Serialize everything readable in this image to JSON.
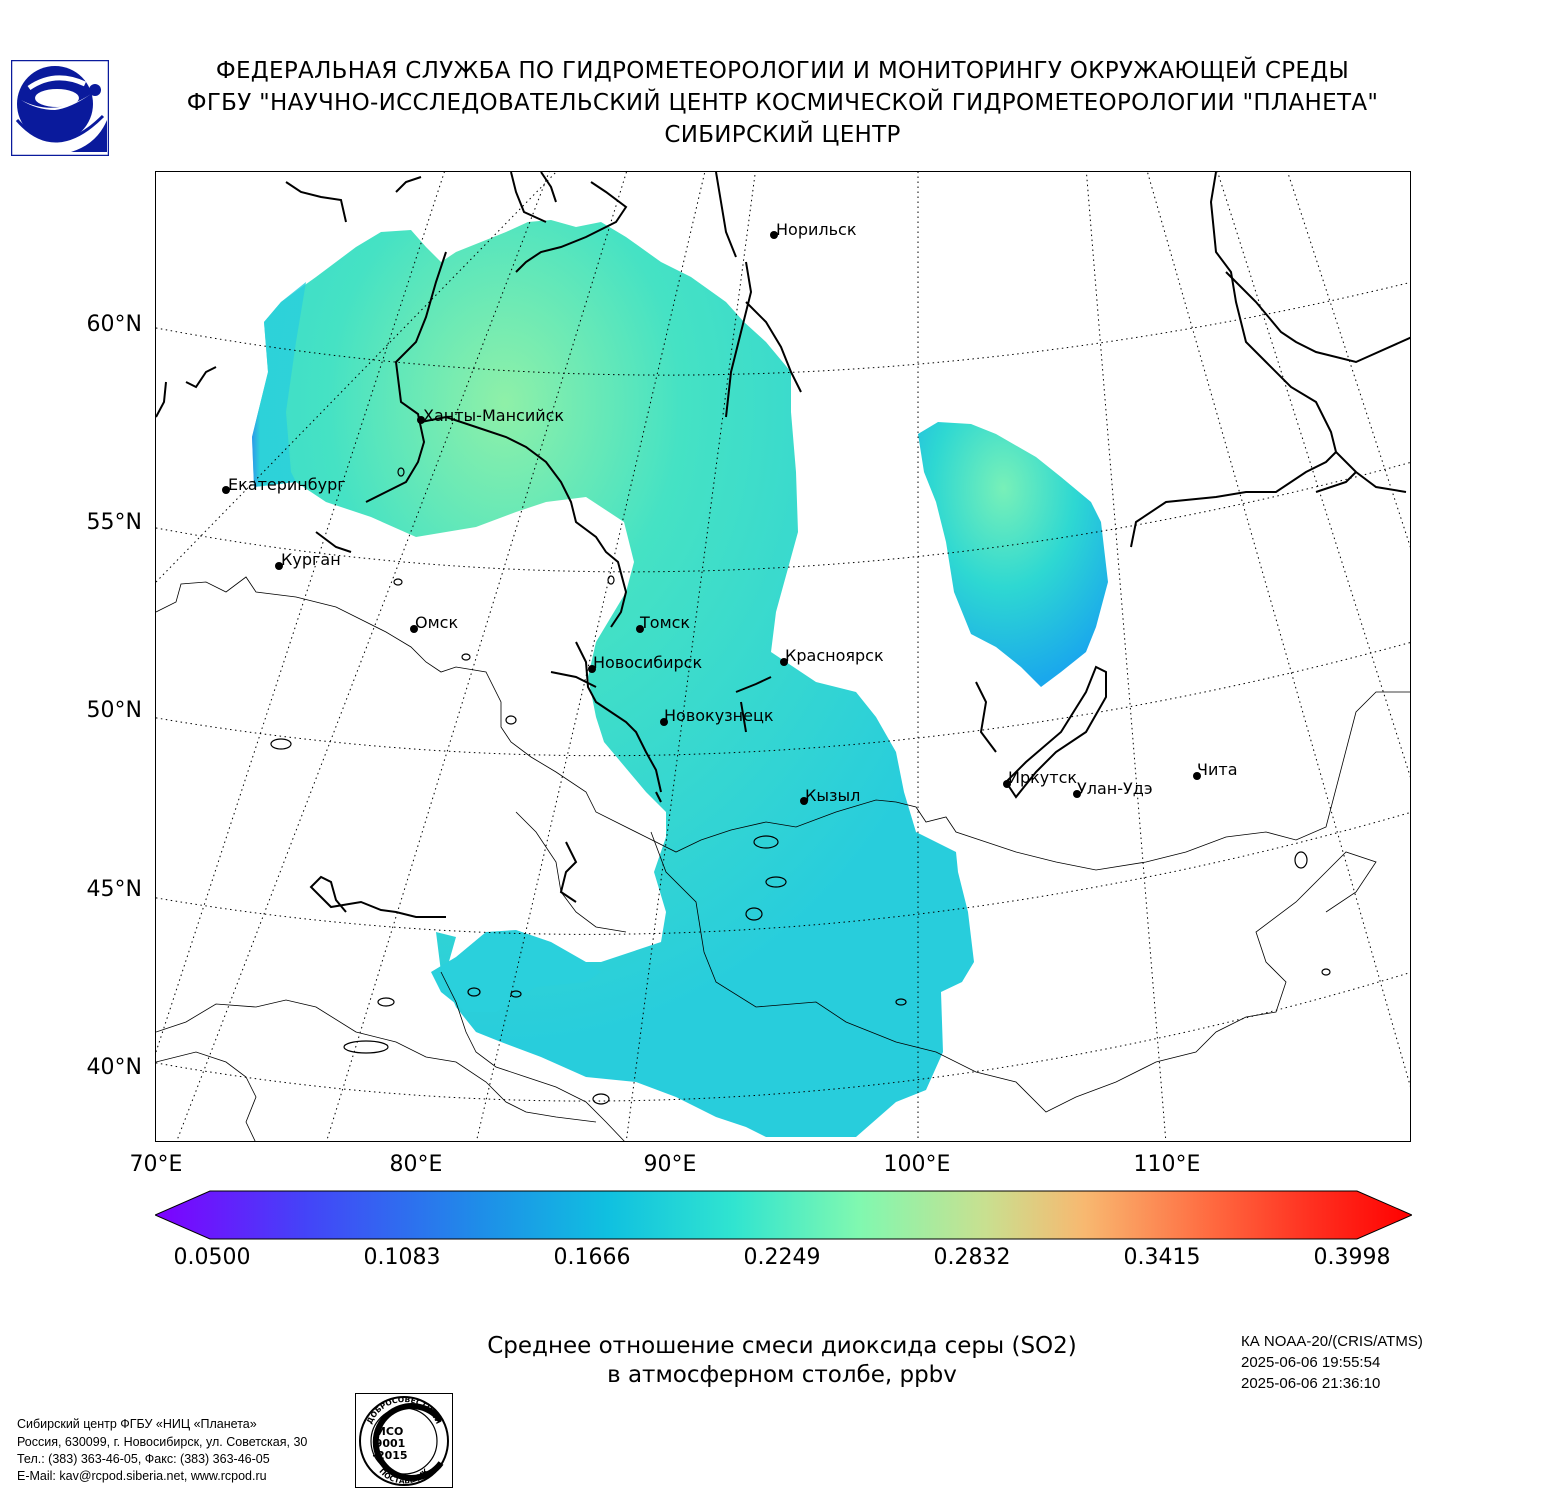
{
  "header": {
    "line1": "ФЕДЕРАЛЬНАЯ СЛУЖБА ПО ГИДРОМЕТЕОРОЛОГИИ И МОНИТОРИНГУ ОКРУЖАЮЩЕЙ СРЕДЫ",
    "line2": "ФГБУ \"НАУЧНО-ИССЛЕДОВАТЕЛЬСКИЙ ЦЕНТР КОСМИЧЕСКОЙ ГИДРОМЕТЕОРОЛОГИИ \"ПЛАНЕТА\"",
    "line3": "СИБИРСКИЙ ЦЕНТР"
  },
  "colors": {
    "logo_blue": "#0a1a9c",
    "field_low": "#1e9fe8",
    "field_mid": "#2ad6d6",
    "field_high": "#7cf0b0"
  },
  "map": {
    "lat_labels": [
      "60°N",
      "55°N",
      "50°N",
      "45°N",
      "40°N"
    ],
    "lon_labels": [
      "70°E",
      "80°E",
      "90°E",
      "100°E",
      "110°E"
    ],
    "cities": [
      {
        "name": "Норильск"
      },
      {
        "name": "Ханты-Мансийск"
      },
      {
        "name": "Екатеринбург"
      },
      {
        "name": "Курган"
      },
      {
        "name": "Омск"
      },
      {
        "name": "Томск"
      },
      {
        "name": "Новосибирск"
      },
      {
        "name": "Красноярск"
      },
      {
        "name": "Новокузнецк"
      },
      {
        "name": "Кызыл"
      },
      {
        "name": "Иркутск"
      },
      {
        "name": "Улан-Удэ"
      },
      {
        "name": "Чита"
      }
    ]
  },
  "colorbar": {
    "ticks": [
      "0.0500",
      "0.1083",
      "0.1666",
      "0.2249",
      "0.2832",
      "0.3415",
      "0.3998"
    ]
  },
  "caption": {
    "line1": "Среднее отношение смеси диоксида серы (SO2)",
    "line2": "в атмосферном столбе, ppbv"
  },
  "satellite": {
    "name": "КА NOAA-20/(CRIS/ATMS)",
    "start_time": "2025-06-06 19:55:54",
    "end_time": "2025-06-06 21:36:10"
  },
  "contact": {
    "line1": "Сибирский центр ФГБУ «НИЦ «Планета»",
    "line2": "Россия, 630099, г. Новосибирск, ул. Советская, 30",
    "line3": "Тел.: (383) 363-46-05, Факс: (383) 363-46-05",
    "line4": "E-Mail: kav@rcpod.siberia.net, www.rcpod.ru"
  },
  "iso_stamp": {
    "top_text": "ДОБРОСОВЕСТНЫЙ",
    "line1": "ИСО",
    "line2": "9001",
    "line3": "-2015",
    "bottom_text": "ПОСТАВЩИК"
  }
}
